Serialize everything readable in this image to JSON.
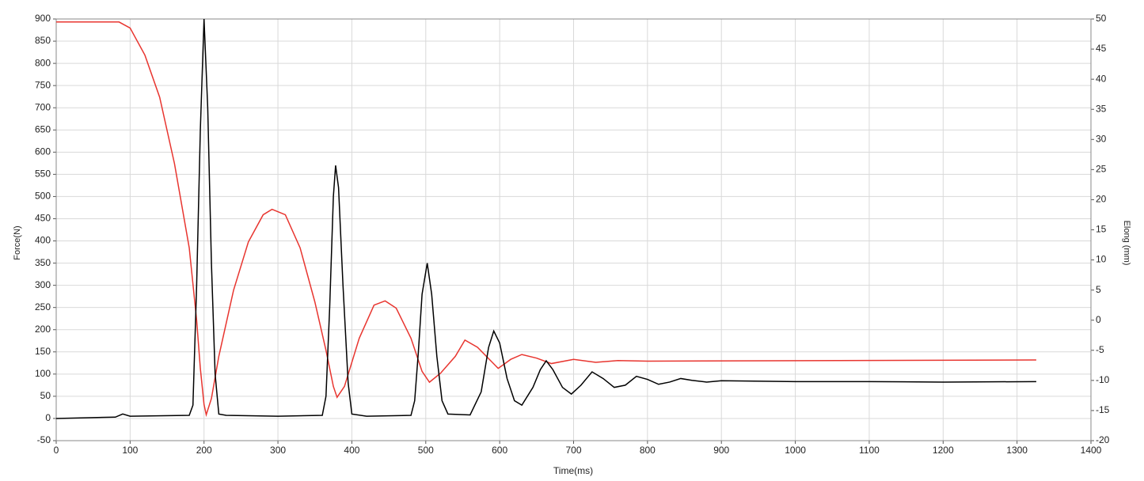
{
  "chart_data": {
    "type": "line",
    "x_label": "Time(ms)",
    "y_label": "Force(N)",
    "y2_label": "Elong (mm)",
    "xlim": [
      0,
      1400
    ],
    "xticks": [
      0,
      100,
      200,
      300,
      400,
      500,
      600,
      700,
      800,
      900,
      1000,
      1100,
      1200,
      1300,
      1400
    ],
    "ylim": [
      -50,
      900
    ],
    "yticks": [
      -50,
      0,
      50,
      100,
      150,
      200,
      250,
      300,
      350,
      400,
      450,
      500,
      550,
      600,
      650,
      700,
      750,
      800,
      850,
      900
    ],
    "y2lim": [
      -20,
      50
    ],
    "y2ticks": [
      -20,
      -15,
      -10,
      -5,
      0,
      5,
      10,
      15,
      20,
      25,
      30,
      35,
      40,
      45,
      50
    ],
    "grid": true,
    "series": [
      {
        "name": "Force",
        "color": "#000000",
        "x": [
          0,
          80,
          90,
          100,
          180,
          185,
          190,
          195,
          200,
          205,
          210,
          215,
          220,
          230,
          300,
          360,
          365,
          370,
          375,
          378,
          382,
          388,
          395,
          400,
          420,
          480,
          485,
          490,
          495,
          502,
          508,
          515,
          522,
          530,
          560,
          575,
          585,
          592,
          600,
          610,
          620,
          630,
          645,
          655,
          663,
          672,
          685,
          697,
          710,
          725,
          740,
          755,
          770,
          785,
          800,
          815,
          830,
          845,
          860,
          880,
          900,
          1000,
          1100,
          1200,
          1326
        ],
        "values": [
          0,
          3,
          10,
          5,
          7,
          30,
          300,
          650,
          900,
          700,
          350,
          100,
          10,
          7,
          5,
          7,
          50,
          250,
          500,
          570,
          520,
          300,
          80,
          10,
          5,
          7,
          40,
          150,
          280,
          350,
          280,
          140,
          40,
          10,
          8,
          60,
          160,
          197,
          170,
          90,
          40,
          30,
          70,
          110,
          130,
          110,
          70,
          55,
          75,
          105,
          90,
          70,
          75,
          95,
          88,
          77,
          82,
          90,
          86,
          82,
          85,
          83,
          83,
          82,
          83
        ]
      },
      {
        "name": "Elong",
        "color": "#e8352f",
        "axis": "y2",
        "x": [
          0,
          85,
          100,
          120,
          140,
          160,
          180,
          190,
          195,
          200,
          203,
          210,
          220,
          240,
          260,
          280,
          292,
          310,
          330,
          350,
          365,
          375,
          380,
          390,
          410,
          430,
          445,
          460,
          480,
          495,
          505,
          520,
          540,
          553,
          570,
          590,
          598,
          615,
          630,
          650,
          670,
          700,
          730,
          760,
          800,
          1326
        ],
        "values": [
          49.5,
          49.5,
          48.5,
          44,
          37,
          26,
          12,
          0,
          -8,
          -14,
          -15.7,
          -13,
          -6,
          5,
          13,
          17.5,
          18.4,
          17.5,
          12,
          3,
          -5,
          -11,
          -12.8,
          -11,
          -3,
          2.5,
          3.2,
          2,
          -3,
          -8.5,
          -10.3,
          -8.8,
          -6,
          -3.3,
          -4.5,
          -7,
          -8,
          -6.5,
          -5.7,
          -6.3,
          -7.2,
          -6.5,
          -7,
          -6.7,
          -6.8,
          -6.6
        ]
      }
    ]
  }
}
